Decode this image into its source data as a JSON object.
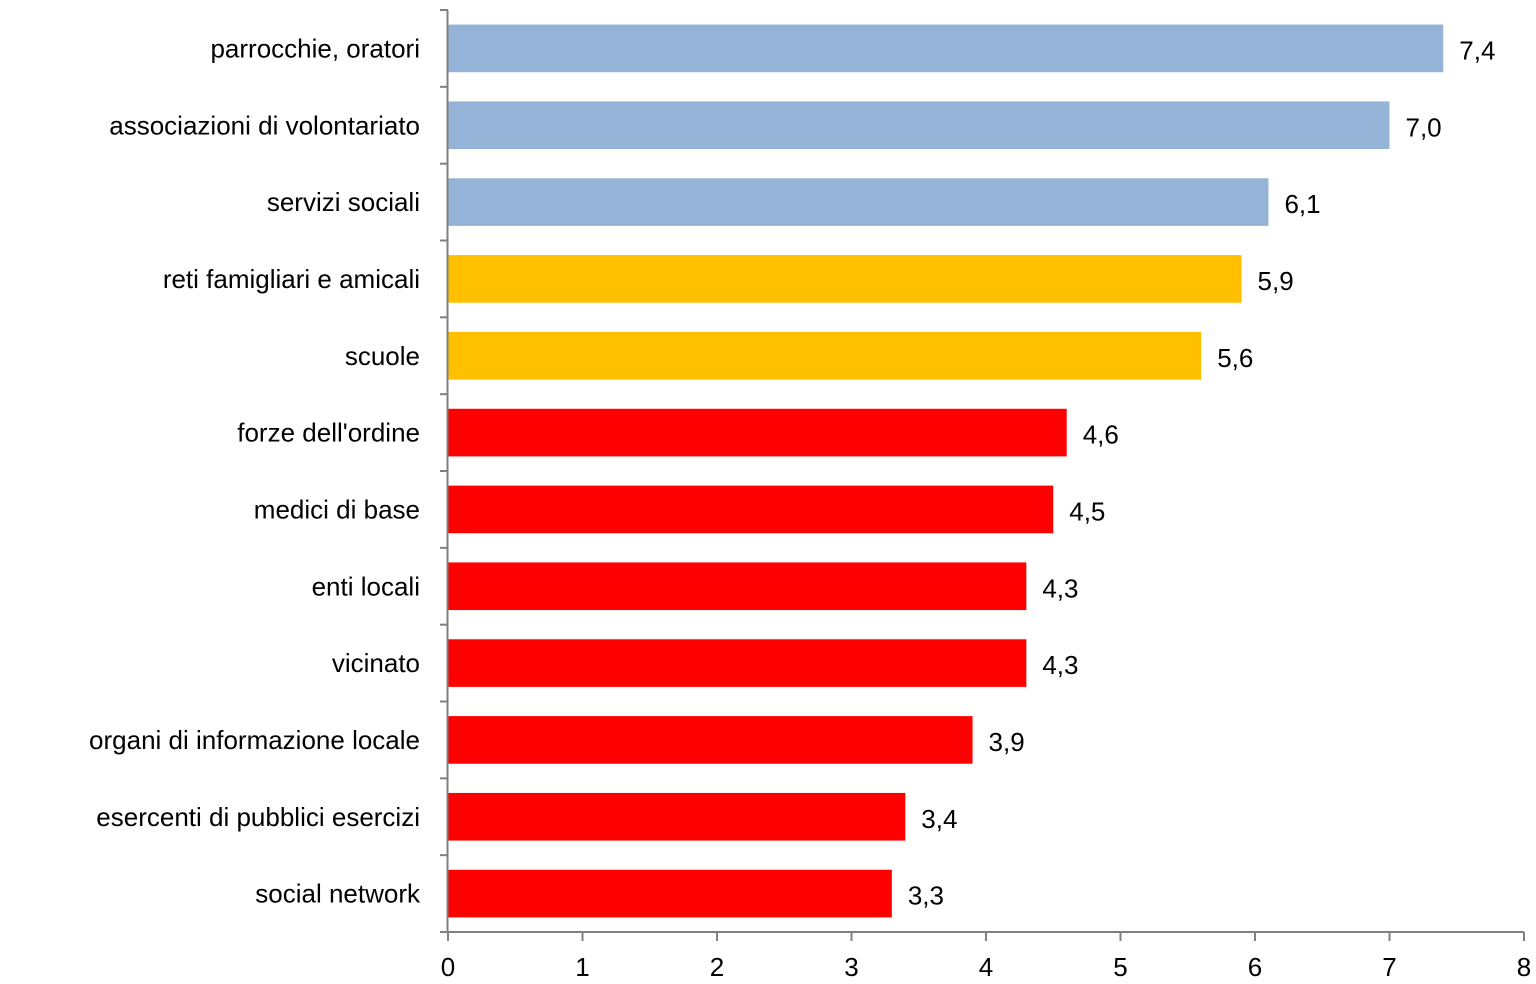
{
  "chart_data": {
    "type": "bar",
    "orientation": "horizontal",
    "categories": [
      "parrocchie, oratori",
      "associazioni di volontariato",
      "servizi sociali",
      "reti famigliari e amicali",
      "scuole",
      "forze dell'ordine",
      "medici di base",
      "enti locali",
      "vicinato",
      "organi di informazione locale",
      "esercenti di pubblici esercizi",
      "social network"
    ],
    "values": [
      7.4,
      7.0,
      6.1,
      5.9,
      5.6,
      4.6,
      4.5,
      4.3,
      4.3,
      3.9,
      3.4,
      3.3
    ],
    "value_labels": [
      "7,4",
      "7,0",
      "6,1",
      "5,9",
      "5,6",
      "4,6",
      "4,5",
      "4,3",
      "4,3",
      "3,9",
      "3,4",
      "3,3"
    ],
    "bar_colors": [
      "#95B3D7",
      "#95B3D7",
      "#95B3D7",
      "#FFC000",
      "#FFC000",
      "#FF0000",
      "#FF0000",
      "#FF0000",
      "#FF0000",
      "#FF0000",
      "#FF0000",
      "#FF0000"
    ],
    "xlim": [
      0,
      8
    ],
    "x_ticks": [
      0,
      1,
      2,
      3,
      4,
      5,
      6,
      7,
      8
    ],
    "x_tick_labels": [
      "0",
      "1",
      "2",
      "3",
      "4",
      "5",
      "6",
      "7",
      "8"
    ],
    "title": "",
    "xlabel": "",
    "ylabel": "",
    "grid": false,
    "legend": "none",
    "axis_color": "#808080"
  }
}
